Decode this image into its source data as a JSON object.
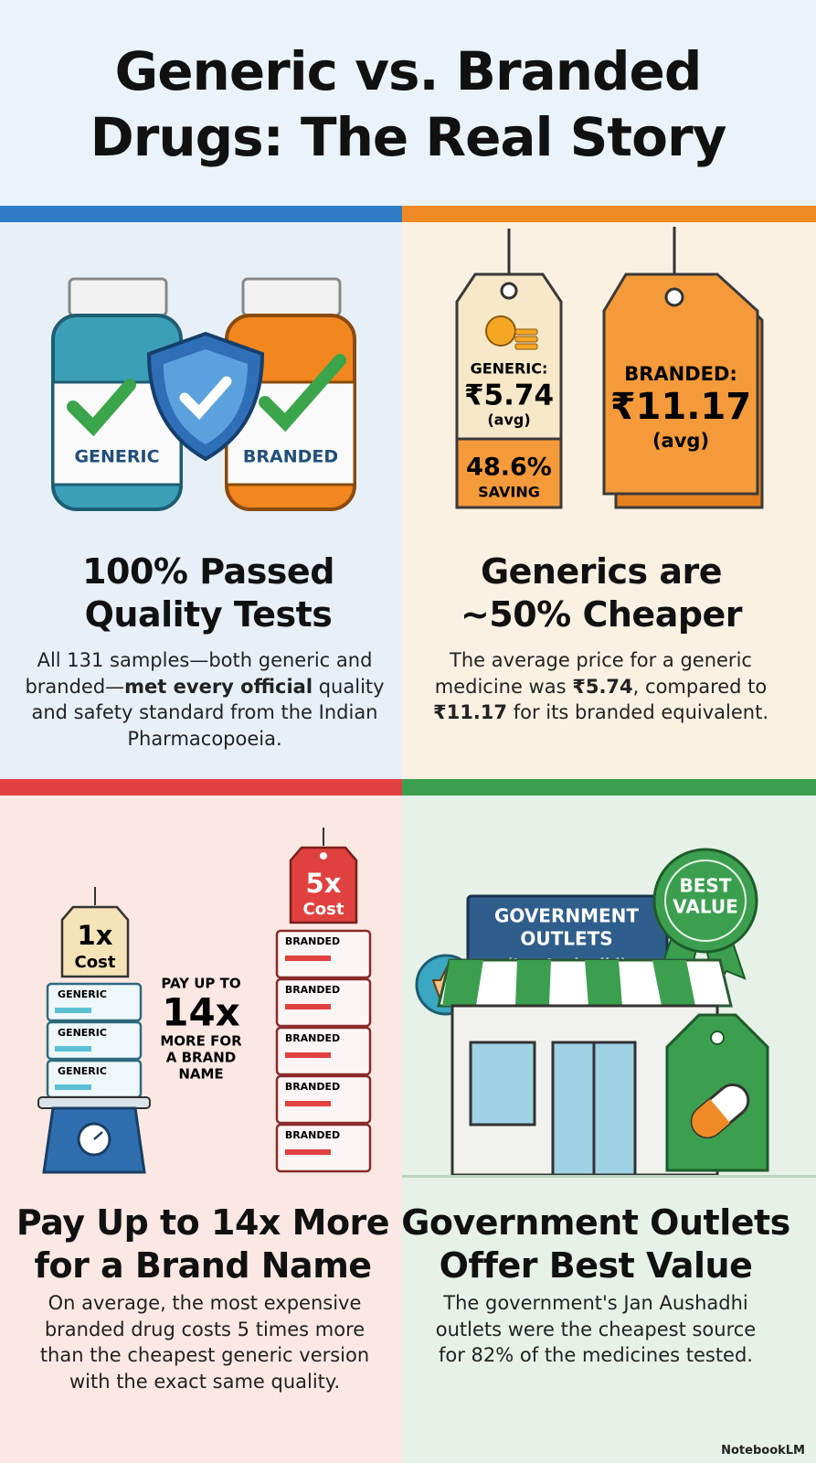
{
  "title": {
    "lines": [
      "Generic vs. Branded",
      "Drugs: The Real Story"
    ]
  },
  "panels": [
    {
      "labels": [
        "GENERIC",
        "BRANDED"
      ],
      "heading": [
        "100% Passed",
        "Quality Tests"
      ],
      "body": [
        {
          "text": "All 131 samples—both generic and branded—"
        },
        {
          "text": "met every official",
          "bold": true
        },
        {
          "text": " quality and safety standard from the Indian Pharmacopoeia."
        }
      ]
    },
    {
      "generic_tag": {
        "label": "GENERIC:",
        "price": "₹5.74",
        "note": "(avg)",
        "saving": "48.6%",
        "saving_label": "SAVING"
      },
      "branded_tag": {
        "label": "BRANDED:",
        "price": "₹11.17",
        "note": "(avg)"
      },
      "heading": [
        "Generics are",
        "~50% Cheaper"
      ],
      "body": [
        {
          "text": "The average price for a generic medicine was "
        },
        {
          "text": "₹5.74",
          "bold": true
        },
        {
          "text": ", compared to "
        },
        {
          "text": "₹11.17",
          "bold": true
        },
        {
          "text": " for its branded equivalent."
        }
      ]
    },
    {
      "generic_tag": {
        "multiple": "1x",
        "label": "Cost"
      },
      "generic_boxes": [
        "GENERIC",
        "GENERIC",
        "GENERIC"
      ],
      "callout": {
        "top": "PAY UP TO",
        "multiple": "14x",
        "lines": [
          "MORE FOR",
          "A BRAND",
          "NAME"
        ]
      },
      "branded_tag": {
        "multiple": "5x",
        "label": "Cost"
      },
      "branded_boxes": [
        "BRANDED",
        "BRANDED",
        "BRANDED",
        "BRANDED",
        "BRANDED"
      ],
      "heading": [
        "Pay Up to 14x More",
        "for a Brand Name"
      ],
      "body": [
        {
          "text": "On average, the most expensive branded drug costs 5 times more than the cheapest generic version with the exact same quality."
        }
      ]
    },
    {
      "sign": [
        "GOVERNMENT",
        "OUTLETS",
        "(Jan Aushadhi)"
      ],
      "badge": [
        "BEST",
        "VALUE"
      ],
      "heading": [
        "Government Outlets",
        "Offer Best Value"
      ],
      "body": [
        {
          "text": "The government's Jan Aushadhi outlets were the cheapest source for 82% of the medicines tested."
        }
      ]
    }
  ],
  "footer": "NotebookLM"
}
